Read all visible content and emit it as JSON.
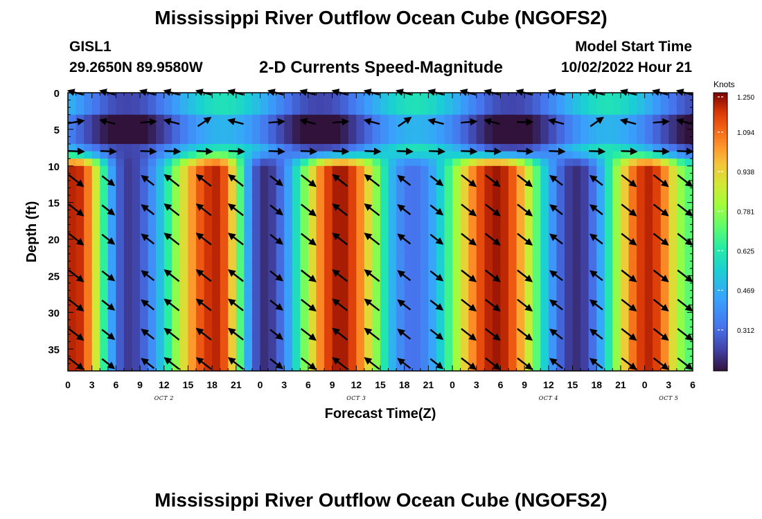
{
  "title": "Mississippi River Outflow Ocean Cube (NGOFS2)",
  "title_repeat": "Mississippi River Outflow Ocean Cube (NGOFS2)",
  "station": {
    "id": "GISL1",
    "coords": "29.2650N  89.9580W"
  },
  "subtitle": "2-D Currents Speed-Magnitude",
  "model_start": {
    "label": "Model Start Time",
    "value": "10/02/2022 Hour 21"
  },
  "colors": {
    "arrow": "#000000",
    "axis": "#000000"
  },
  "chart_data": {
    "type": "heatmap",
    "title": "2-D Currents Speed-Magnitude",
    "xlabel": "Forecast Time(Z)",
    "ylabel": "Depth (ft)",
    "x_hours_range": [
      0,
      78
    ],
    "ylim": [
      0,
      38
    ],
    "y_ticks": [
      0,
      5,
      10,
      15,
      20,
      25,
      30,
      35
    ],
    "x_ticks": [
      {
        "h": 0,
        "label": "0"
      },
      {
        "h": 3,
        "label": "3"
      },
      {
        "h": 6,
        "label": "6"
      },
      {
        "h": 9,
        "label": "9"
      },
      {
        "h": 12,
        "label": "12"
      },
      {
        "h": 15,
        "label": "15"
      },
      {
        "h": 18,
        "label": "18"
      },
      {
        "h": 21,
        "label": "21"
      },
      {
        "h": 24,
        "label": "0"
      },
      {
        "h": 27,
        "label": "3"
      },
      {
        "h": 30,
        "label": "6"
      },
      {
        "h": 33,
        "label": "9"
      },
      {
        "h": 36,
        "label": "12"
      },
      {
        "h": 39,
        "label": "15"
      },
      {
        "h": 42,
        "label": "18"
      },
      {
        "h": 45,
        "label": "21"
      },
      {
        "h": 48,
        "label": "0"
      },
      {
        "h": 51,
        "label": "3"
      },
      {
        "h": 54,
        "label": "6"
      },
      {
        "h": 57,
        "label": "9"
      },
      {
        "h": 60,
        "label": "12"
      },
      {
        "h": 63,
        "label": "15"
      },
      {
        "h": 66,
        "label": "18"
      },
      {
        "h": 69,
        "label": "21"
      },
      {
        "h": 72,
        "label": "0"
      },
      {
        "h": 75,
        "label": "3"
      },
      {
        "h": 78,
        "label": "6"
      }
    ],
    "date_labels": [
      {
        "h": 12,
        "label": "OCT 2"
      },
      {
        "h": 36,
        "label": "OCT 3"
      },
      {
        "h": 60,
        "label": "OCT 4"
      },
      {
        "h": 75,
        "label": "OCT 5"
      }
    ],
    "colorbar": {
      "unit": "Knots",
      "min": 0.15,
      "max": 1.25,
      "ticks": [
        1.25,
        1.094,
        0.938,
        0.781,
        0.625,
        0.469,
        0.312
      ],
      "tick_labels": [
        "1.250",
        "1.094",
        "0.938",
        "0.781",
        "0.625",
        "0.469",
        "0.312"
      ]
    },
    "speed_peaks": [
      {
        "h": 1,
        "v": 1.2
      },
      {
        "h": 7.5,
        "v": 0.22
      },
      {
        "h": 18.5,
        "v": 1.2
      },
      {
        "h": 24.5,
        "v": 0.2
      },
      {
        "h": 34,
        "v": 1.22
      },
      {
        "h": 43,
        "v": 0.32
      },
      {
        "h": 53.5,
        "v": 1.22
      },
      {
        "h": 63.5,
        "v": 0.2
      },
      {
        "h": 72.5,
        "v": 1.2
      },
      {
        "h": 78,
        "v": 0.7
      }
    ],
    "vector_rows_ft": [
      0,
      4,
      8,
      12,
      16,
      20,
      25,
      29,
      33,
      37
    ],
    "vector_columns_h": [
      1,
      5,
      10,
      13,
      17,
      21,
      26,
      30,
      34,
      38,
      42,
      46,
      50,
      53,
      57,
      61,
      66,
      70,
      74,
      77
    ]
  }
}
